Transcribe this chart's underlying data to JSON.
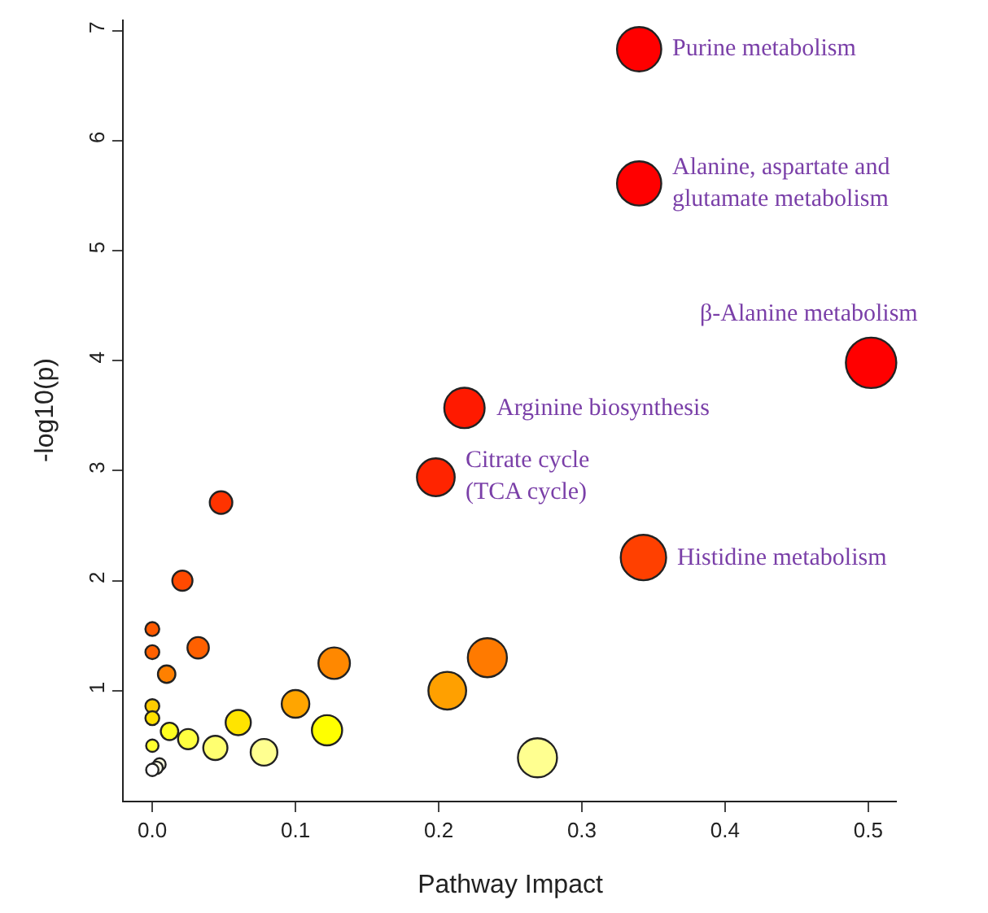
{
  "chart_data": {
    "type": "bubble",
    "xlabel": "Pathway Impact",
    "ylabel": "-log10(p)",
    "xlim": [
      -0.02,
      0.52
    ],
    "ylim": [
      0,
      7.1
    ],
    "xticks": [
      {
        "value": 0,
        "label": "0.0"
      },
      0.1,
      0.2,
      0.3,
      0.4,
      0.5
    ],
    "yticks": [
      1,
      2,
      3,
      4,
      5,
      6,
      7
    ],
    "series": [
      {
        "x": [
          0.34,
          0.34,
          0.502,
          0.218,
          0.198,
          0.343,
          0.048,
          0.021,
          0,
          0,
          0.032,
          0.01,
          0.127,
          0.234,
          0.206,
          0.1,
          0,
          0,
          0.06,
          0.122,
          0.012,
          0.025,
          0,
          0.044,
          0.078,
          0.269,
          0.005,
          0.003,
          0
        ],
        "values": [
          6.83,
          5.61,
          3.98,
          3.57,
          2.94,
          2.21,
          2.71,
          2.0,
          1.56,
          1.35,
          1.39,
          1.15,
          1.25,
          1.3,
          1.0,
          0.88,
          0.86,
          0.75,
          0.71,
          0.64,
          0.63,
          0.56,
          0.5,
          0.48,
          0.44,
          0.39,
          0.33,
          0.3,
          0.28
        ],
        "sizes": [
          0.77,
          0.77,
          1,
          0.64,
          0.56,
          0.81,
          0.2,
          0.16,
          0.076,
          0.076,
          0.18,
          0.12,
          0.39,
          0.6,
          0.56,
          0.3,
          0.076,
          0.076,
          0.25,
          0.36,
          0.12,
          0.16,
          0.06,
          0.23,
          0.28,
          0.6,
          0.06,
          0.06,
          0.06
        ],
        "colors": [
          "#ff0000",
          "#ff0000",
          "#ff0000",
          "#ff1a00",
          "#ff2400",
          "#ff4000",
          "#ff3300",
          "#ff4a00",
          "#ff5a00",
          "#ff6000",
          "#ff6000",
          "#ff8000",
          "#ff8800",
          "#ff7a00",
          "#ffa000",
          "#ffa500",
          "#ffcc00",
          "#ffe000",
          "#ffe400",
          "#ffff00",
          "#ffff20",
          "#ffff40",
          "#ffff30",
          "#ffff70",
          "#ffff90",
          "#ffff90",
          "#ffffe0",
          "#ffffe8",
          "#ffffff"
        ]
      }
    ],
    "annotations": [
      {
        "text": "Purine metabolism",
        "x": 0.34,
        "y": 6.83
      },
      {
        "text": "Alanine, aspartate and\nglutamate metabolism",
        "x": 0.34,
        "y": 5.61
      },
      {
        "text": "β-Alanine metabolism",
        "x": 0.502,
        "y": 3.98
      },
      {
        "text": "Arginine biosynthesis",
        "x": 0.218,
        "y": 3.57
      },
      {
        "text": "Citrate cycle\n(TCA cycle)",
        "x": 0.198,
        "y": 2.94
      },
      {
        "text": "Histidine metabolism",
        "x": 0.343,
        "y": 2.21
      }
    ]
  }
}
